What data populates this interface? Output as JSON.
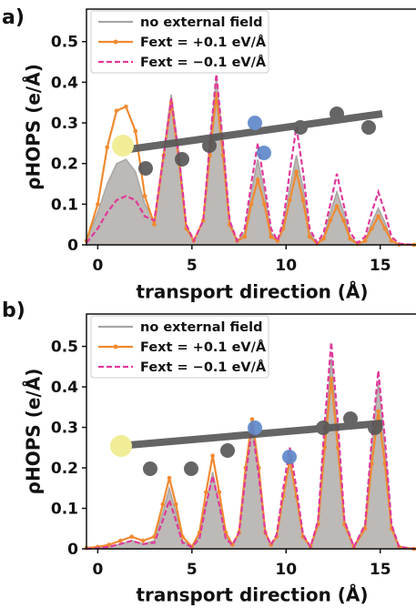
{
  "chart_data": [
    {
      "type": "line",
      "panel_label": "a)",
      "xlabel": "transport direction (Å)",
      "ylabel": "ρHOPS (e/Å)",
      "xlim": [
        -0.6,
        16.9
      ],
      "ylim": [
        0,
        0.58
      ],
      "xticks": [
        0,
        5,
        10,
        15
      ],
      "yticks": [
        0,
        0.1,
        0.2,
        0.3,
        0.4,
        0.5
      ],
      "legend": "upper left",
      "x": [
        -0.6,
        0,
        0.5,
        1.0,
        1.5,
        2.0,
        2.5,
        3.0,
        3.5,
        3.9,
        4.3,
        4.7,
        5.1,
        5.6,
        5.95,
        6.3,
        6.65,
        7.0,
        7.4,
        7.8,
        8.15,
        8.5,
        8.85,
        9.2,
        9.55,
        9.85,
        10.2,
        10.55,
        10.9,
        11.25,
        11.65,
        12.0,
        12.35,
        12.7,
        13.05,
        13.4,
        13.8,
        14.2,
        14.55,
        14.9,
        15.25,
        15.6,
        16.0,
        16.8
      ],
      "series": [
        {
          "name": "no external field",
          "color": "#bdb9b6",
          "style": "area",
          "values": [
            0.01,
            0.08,
            0.15,
            0.2,
            0.21,
            0.18,
            0.1,
            0.06,
            0.23,
            0.37,
            0.23,
            0.05,
            0.01,
            0.06,
            0.25,
            0.41,
            0.25,
            0.06,
            0.01,
            0.03,
            0.13,
            0.21,
            0.13,
            0.03,
            0.01,
            0.05,
            0.14,
            0.22,
            0.14,
            0.03,
            0.005,
            0.02,
            0.08,
            0.13,
            0.08,
            0.02,
            0.003,
            0.01,
            0.055,
            0.09,
            0.055,
            0.01,
            0.002,
            0
          ]
        },
        {
          "name": "Fext = +0.1 eV/Å",
          "color": "#f08a30",
          "style": "markers",
          "values": [
            0.01,
            0.1,
            0.24,
            0.33,
            0.34,
            0.28,
            0.12,
            0.05,
            0.22,
            0.35,
            0.21,
            0.04,
            0.01,
            0.06,
            0.22,
            0.37,
            0.22,
            0.05,
            0.01,
            0.02,
            0.1,
            0.16,
            0.1,
            0.02,
            0.01,
            0.04,
            0.11,
            0.18,
            0.11,
            0.02,
            0.003,
            0.015,
            0.06,
            0.095,
            0.06,
            0.015,
            0.002,
            0.01,
            0.04,
            0.07,
            0.04,
            0.01,
            0.001,
            0
          ]
        },
        {
          "name": "Fext = −0.1 eV/Å",
          "color": "#e0399a",
          "style": "dashed",
          "values": [
            0.005,
            0.04,
            0.08,
            0.11,
            0.12,
            0.11,
            0.07,
            0.06,
            0.22,
            0.36,
            0.22,
            0.05,
            0.01,
            0.06,
            0.25,
            0.42,
            0.25,
            0.06,
            0.01,
            0.04,
            0.15,
            0.25,
            0.15,
            0.04,
            0.01,
            0.06,
            0.18,
            0.29,
            0.18,
            0.04,
            0.005,
            0.03,
            0.1,
            0.175,
            0.1,
            0.03,
            0.005,
            0.02,
            0.08,
            0.13,
            0.08,
            0.02,
            0.003,
            0
          ]
        }
      ]
    },
    {
      "type": "line",
      "panel_label": "b)",
      "xlabel": "transport direction (Å)",
      "ylabel": "ρHOPS (e/Å)",
      "xlim": [
        -0.6,
        16.9
      ],
      "ylim": [
        0,
        0.58
      ],
      "xticks": [
        0,
        5,
        10,
        15
      ],
      "yticks": [
        0,
        0.1,
        0.2,
        0.3,
        0.4,
        0.5
      ],
      "legend": "upper left",
      "x": [
        -0.6,
        0,
        0.6,
        1.2,
        1.8,
        2.4,
        3.0,
        3.45,
        3.8,
        4.15,
        4.5,
        5.0,
        5.4,
        5.75,
        6.1,
        6.45,
        6.8,
        7.15,
        7.5,
        7.85,
        8.2,
        8.55,
        8.9,
        9.2,
        9.5,
        9.85,
        10.2,
        10.55,
        10.9,
        11.3,
        11.7,
        12.05,
        12.4,
        12.75,
        13.1,
        13.6,
        14.2,
        14.55,
        14.9,
        15.25,
        15.6,
        16.0,
        16.8
      ],
      "series": [
        {
          "name": "no external field",
          "color": "#bdb9b6",
          "style": "area",
          "values": [
            0,
            0.002,
            0.005,
            0.012,
            0.02,
            0.012,
            0.02,
            0.09,
            0.15,
            0.09,
            0.02,
            0.005,
            0.03,
            0.11,
            0.19,
            0.11,
            0.03,
            0.01,
            0.04,
            0.19,
            0.31,
            0.19,
            0.04,
            0.01,
            0.03,
            0.13,
            0.22,
            0.13,
            0.03,
            0.005,
            0.07,
            0.28,
            0.47,
            0.28,
            0.07,
            0.005,
            0.06,
            0.25,
            0.41,
            0.25,
            0.06,
            0.005,
            0
          ]
        },
        {
          "name": "Fext = +0.1 eV/Å",
          "color": "#f08a30",
          "style": "markers",
          "values": [
            0.002,
            0.005,
            0.01,
            0.02,
            0.03,
            0.02,
            0.03,
            0.11,
            0.175,
            0.11,
            0.03,
            0.005,
            0.04,
            0.14,
            0.23,
            0.14,
            0.04,
            0.01,
            0.04,
            0.2,
            0.32,
            0.2,
            0.04,
            0.01,
            0.03,
            0.13,
            0.22,
            0.13,
            0.03,
            0.005,
            0.06,
            0.25,
            0.42,
            0.25,
            0.06,
            0.005,
            0.05,
            0.21,
            0.34,
            0.21,
            0.05,
            0.005,
            0
          ]
        },
        {
          "name": "Fext = −0.1 eV/Å",
          "color": "#e0399a",
          "style": "dashed",
          "values": [
            0,
            0.002,
            0.005,
            0.012,
            0.02,
            0.012,
            0.015,
            0.07,
            0.12,
            0.07,
            0.015,
            0.005,
            0.025,
            0.11,
            0.18,
            0.11,
            0.025,
            0.01,
            0.04,
            0.18,
            0.3,
            0.18,
            0.04,
            0.01,
            0.035,
            0.15,
            0.25,
            0.15,
            0.035,
            0.005,
            0.07,
            0.31,
            0.51,
            0.31,
            0.07,
            0.005,
            0.06,
            0.27,
            0.44,
            0.27,
            0.06,
            0.005,
            0
          ]
        }
      ]
    }
  ]
}
